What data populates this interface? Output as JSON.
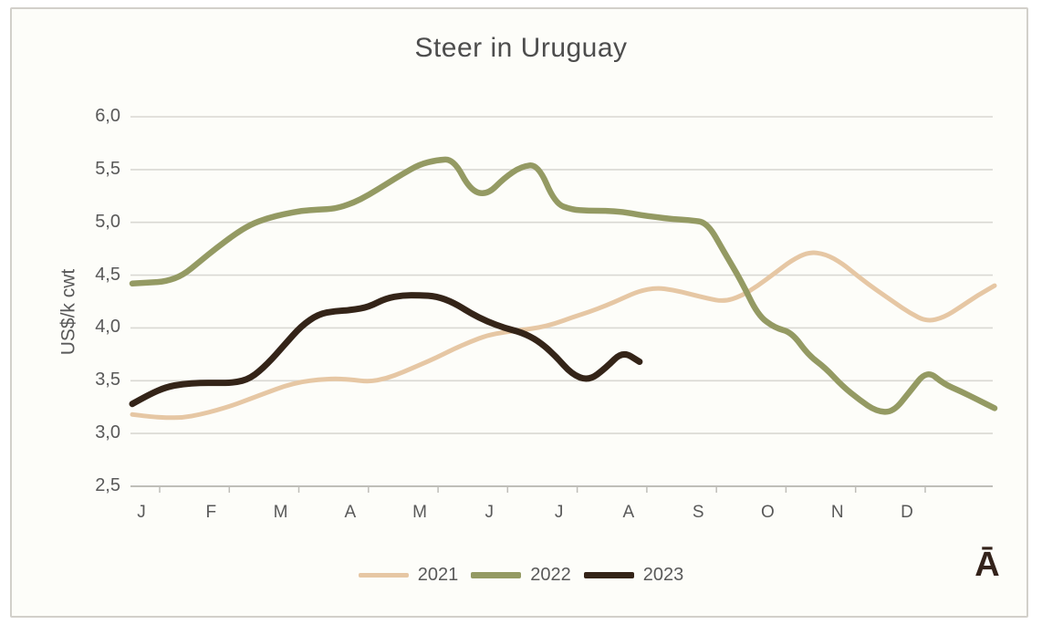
{
  "title": "Steer in Uruguay",
  "y_axis_title": "US$/k cwt",
  "watermark": "Ā",
  "colors": {
    "frame_border": "#d2d0ca",
    "plot_background": "#fdfdf9",
    "grid": "#d9d8d3",
    "axis": "#bfbeb9",
    "text": "#595959",
    "title_text": "#4d4d4d",
    "watermark_text": "#33221a"
  },
  "chart_data": {
    "type": "line",
    "title": "Steer in Uruguay",
    "xlabel": "",
    "ylabel": "US$/k cwt",
    "x_unit": "weekly points, Jan–Dec",
    "categories": [
      "J",
      "F",
      "M",
      "A",
      "M",
      "J",
      "J",
      "A",
      "S",
      "O",
      "N",
      "D"
    ],
    "ylim": [
      2.5,
      6.0
    ],
    "y_ticks": [
      2.5,
      3.0,
      3.5,
      4.0,
      4.5,
      5.0,
      5.5,
      6.0
    ],
    "y_tick_labels": [
      "2,5",
      "3,0",
      "3,5",
      "4,0",
      "4,5",
      "5,0",
      "5,5",
      "6,0"
    ],
    "grid": true,
    "legend_position": "bottom-center",
    "series": [
      {
        "name": "2021",
        "color": "#e6c7a4",
        "stroke_width": 5,
        "values": [
          3.18,
          3.16,
          3.15,
          3.15,
          3.18,
          3.22,
          3.27,
          3.33,
          3.39,
          3.45,
          3.49,
          3.51,
          3.52,
          3.51,
          3.49,
          3.52,
          3.58,
          3.65,
          3.72,
          3.8,
          3.87,
          3.93,
          3.96,
          3.98,
          4.0,
          4.04,
          4.1,
          4.15,
          4.21,
          4.28,
          4.35,
          4.38,
          4.36,
          4.32,
          4.28,
          4.25,
          4.3,
          4.4,
          4.52,
          4.64,
          4.72,
          4.7,
          4.61,
          4.48,
          4.36,
          4.25,
          4.14,
          4.06,
          4.1,
          4.2,
          4.31,
          4.4
        ]
      },
      {
        "name": "2022",
        "color": "#949a63",
        "stroke_width": 6.5,
        "values": [
          4.42,
          4.43,
          4.44,
          4.5,
          4.63,
          4.76,
          4.88,
          4.98,
          5.04,
          5.08,
          5.11,
          5.12,
          5.13,
          5.18,
          5.26,
          5.36,
          5.46,
          5.55,
          5.59,
          5.6,
          5.3,
          5.26,
          5.42,
          5.53,
          5.55,
          5.18,
          5.12,
          5.11,
          5.11,
          5.1,
          5.07,
          5.05,
          5.03,
          5.02,
          5.0,
          4.72,
          4.45,
          4.12,
          4.0,
          3.96,
          3.74,
          3.62,
          3.45,
          3.32,
          3.21,
          3.2,
          3.4,
          3.6,
          3.47,
          3.4,
          3.32,
          3.24
        ]
      },
      {
        "name": "2023",
        "color": "#342418",
        "stroke_width": 7,
        "values": [
          3.28,
          3.37,
          3.44,
          3.47,
          3.48,
          3.48,
          3.48,
          3.52,
          3.66,
          3.84,
          4.02,
          4.13,
          4.16,
          4.17,
          4.2,
          4.28,
          4.31,
          4.31,
          4.3,
          4.24,
          4.14,
          4.06,
          4.0,
          3.96,
          3.88,
          3.74,
          3.56,
          3.5,
          3.62,
          3.78,
          3.68
        ]
      }
    ]
  }
}
